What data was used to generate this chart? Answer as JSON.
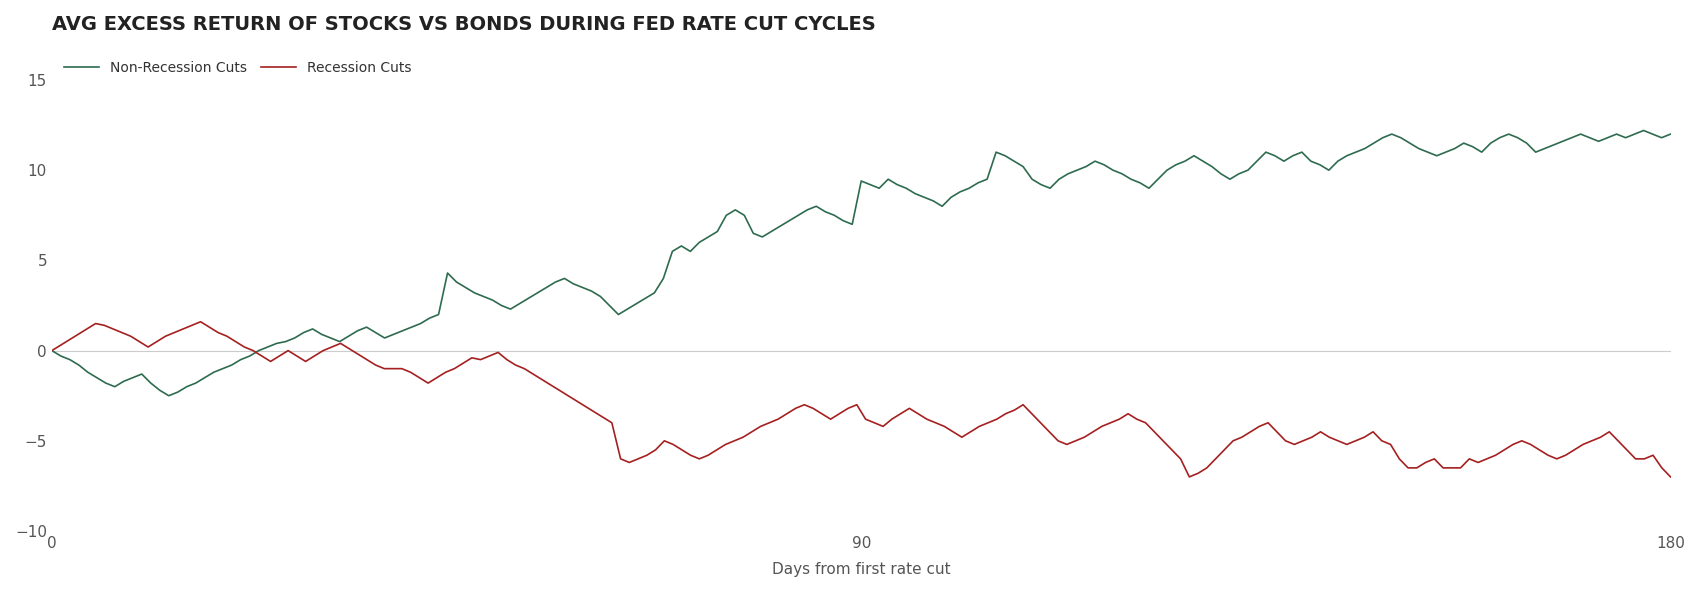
{
  "title": "AVG EXCESS RETURN OF STOCKS VS BONDS DURING FED RATE CUT CYCLES",
  "xlabel": "Days from first rate cut",
  "xlim": [
    0,
    180
  ],
  "ylim": [
    -10,
    17
  ],
  "yticks": [
    -10,
    -5,
    0,
    5,
    10,
    15
  ],
  "xticks": [
    0,
    90,
    180
  ],
  "bg_color": "#ffffff",
  "non_recession_color": "#2e6b4f",
  "recession_color": "#a52020",
  "grid_color": "#cccccc",
  "title_fontsize": 14,
  "label_fontsize": 11,
  "tick_fontsize": 11,
  "legend_fontsize": 10,
  "non_recession_label": "Non-Recession Cuts",
  "recession_label": "Recession Cuts",
  "non_recession_y": [
    0.0,
    -0.3,
    -0.5,
    -0.8,
    -1.2,
    -1.5,
    -1.8,
    -2.0,
    -1.7,
    -1.5,
    -1.3,
    -1.8,
    -2.2,
    -2.5,
    -2.3,
    -2.0,
    -1.8,
    -1.5,
    -1.2,
    -1.0,
    -0.8,
    -0.5,
    -0.3,
    0.0,
    0.2,
    0.4,
    0.5,
    0.7,
    1.0,
    1.2,
    0.9,
    0.7,
    0.5,
    0.8,
    1.1,
    1.3,
    1.0,
    0.7,
    0.9,
    1.1,
    1.3,
    1.5,
    1.8,
    2.0,
    4.3,
    3.8,
    3.5,
    3.2,
    3.0,
    2.8,
    2.5,
    2.3,
    2.6,
    2.9,
    3.2,
    3.5,
    3.8,
    4.0,
    3.7,
    3.5,
    3.3,
    3.0,
    2.5,
    2.0,
    2.3,
    2.6,
    2.9,
    3.2,
    4.0,
    5.5,
    5.8,
    5.5,
    6.0,
    6.3,
    6.6,
    7.5,
    7.8,
    7.5,
    6.5,
    6.3,
    6.6,
    6.9,
    7.2,
    7.5,
    7.8,
    8.0,
    7.7,
    7.5,
    7.2,
    7.0,
    9.4,
    9.2,
    9.0,
    9.5,
    9.2,
    9.0,
    8.7,
    8.5,
    8.3,
    8.0,
    8.5,
    8.8,
    9.0,
    9.3,
    9.5,
    11.0,
    10.8,
    10.5,
    10.2,
    9.5,
    9.2,
    9.0,
    9.5,
    9.8,
    10.0,
    10.2,
    10.5,
    10.3,
    10.0,
    9.8,
    9.5,
    9.3,
    9.0,
    9.5,
    10.0,
    10.3,
    10.5,
    10.8,
    10.5,
    10.2,
    9.8,
    9.5,
    9.8,
    10.0,
    10.5,
    11.0,
    10.8,
    10.5,
    10.8,
    11.0,
    10.5,
    10.3,
    10.0,
    10.5,
    10.8,
    11.0,
    11.2,
    11.5,
    11.8,
    12.0,
    11.8,
    11.5,
    11.2,
    11.0,
    10.8,
    11.0,
    11.2,
    11.5,
    11.3,
    11.0,
    11.5,
    11.8,
    12.0,
    11.8,
    11.5,
    11.0,
    11.2,
    11.4,
    11.6,
    11.8,
    12.0,
    11.8,
    11.6,
    11.8,
    12.0,
    11.8,
    12.0,
    12.2,
    12.0,
    11.8,
    12.0
  ],
  "recession_y": [
    0.0,
    0.3,
    0.6,
    0.9,
    1.2,
    1.5,
    1.4,
    1.2,
    1.0,
    0.8,
    0.5,
    0.2,
    0.5,
    0.8,
    1.0,
    1.2,
    1.4,
    1.6,
    1.3,
    1.0,
    0.8,
    0.5,
    0.2,
    0.0,
    -0.3,
    -0.6,
    -0.3,
    0.0,
    -0.3,
    -0.6,
    -0.3,
    0.0,
    0.2,
    0.4,
    0.1,
    -0.2,
    -0.5,
    -0.8,
    -1.0,
    -1.0,
    -1.0,
    -1.2,
    -1.5,
    -1.8,
    -1.5,
    -1.2,
    -1.0,
    -0.7,
    -0.4,
    -0.5,
    -0.3,
    -0.1,
    -0.5,
    -0.8,
    -1.0,
    -1.3,
    -1.6,
    -1.9,
    -2.2,
    -2.5,
    -2.8,
    -3.1,
    -3.4,
    -3.7,
    -4.0,
    -6.0,
    -6.2,
    -6.0,
    -5.8,
    -5.5,
    -5.0,
    -5.2,
    -5.5,
    -5.8,
    -6.0,
    -5.8,
    -5.5,
    -5.2,
    -5.0,
    -4.8,
    -4.5,
    -4.2,
    -4.0,
    -3.8,
    -3.5,
    -3.2,
    -3.0,
    -3.2,
    -3.5,
    -3.8,
    -3.5,
    -3.2,
    -3.0,
    -3.8,
    -4.0,
    -4.2,
    -3.8,
    -3.5,
    -3.2,
    -3.5,
    -3.8,
    -4.0,
    -4.2,
    -4.5,
    -4.8,
    -4.5,
    -4.2,
    -4.0,
    -3.8,
    -3.5,
    -3.3,
    -3.0,
    -3.5,
    -4.0,
    -4.5,
    -5.0,
    -5.2,
    -5.0,
    -4.8,
    -4.5,
    -4.2,
    -4.0,
    -3.8,
    -3.5,
    -3.8,
    -4.0,
    -4.5,
    -5.0,
    -5.5,
    -6.0,
    -7.0,
    -6.8,
    -6.5,
    -6.0,
    -5.5,
    -5.0,
    -4.8,
    -4.5,
    -4.2,
    -4.0,
    -4.5,
    -5.0,
    -5.2,
    -5.0,
    -4.8,
    -4.5,
    -4.8,
    -5.0,
    -5.2,
    -5.0,
    -4.8,
    -4.5,
    -5.0,
    -5.2,
    -6.0,
    -6.5,
    -6.5,
    -6.2,
    -6.0,
    -6.5,
    -6.5,
    -6.5,
    -6.0,
    -6.2,
    -6.0,
    -5.8,
    -5.5,
    -5.2,
    -5.0,
    -5.2,
    -5.5,
    -5.8,
    -6.0,
    -5.8,
    -5.5,
    -5.2,
    -5.0,
    -4.8,
    -4.5,
    -5.0,
    -5.5,
    -6.0,
    -6.0,
    -5.8,
    -6.5,
    -7.0
  ]
}
